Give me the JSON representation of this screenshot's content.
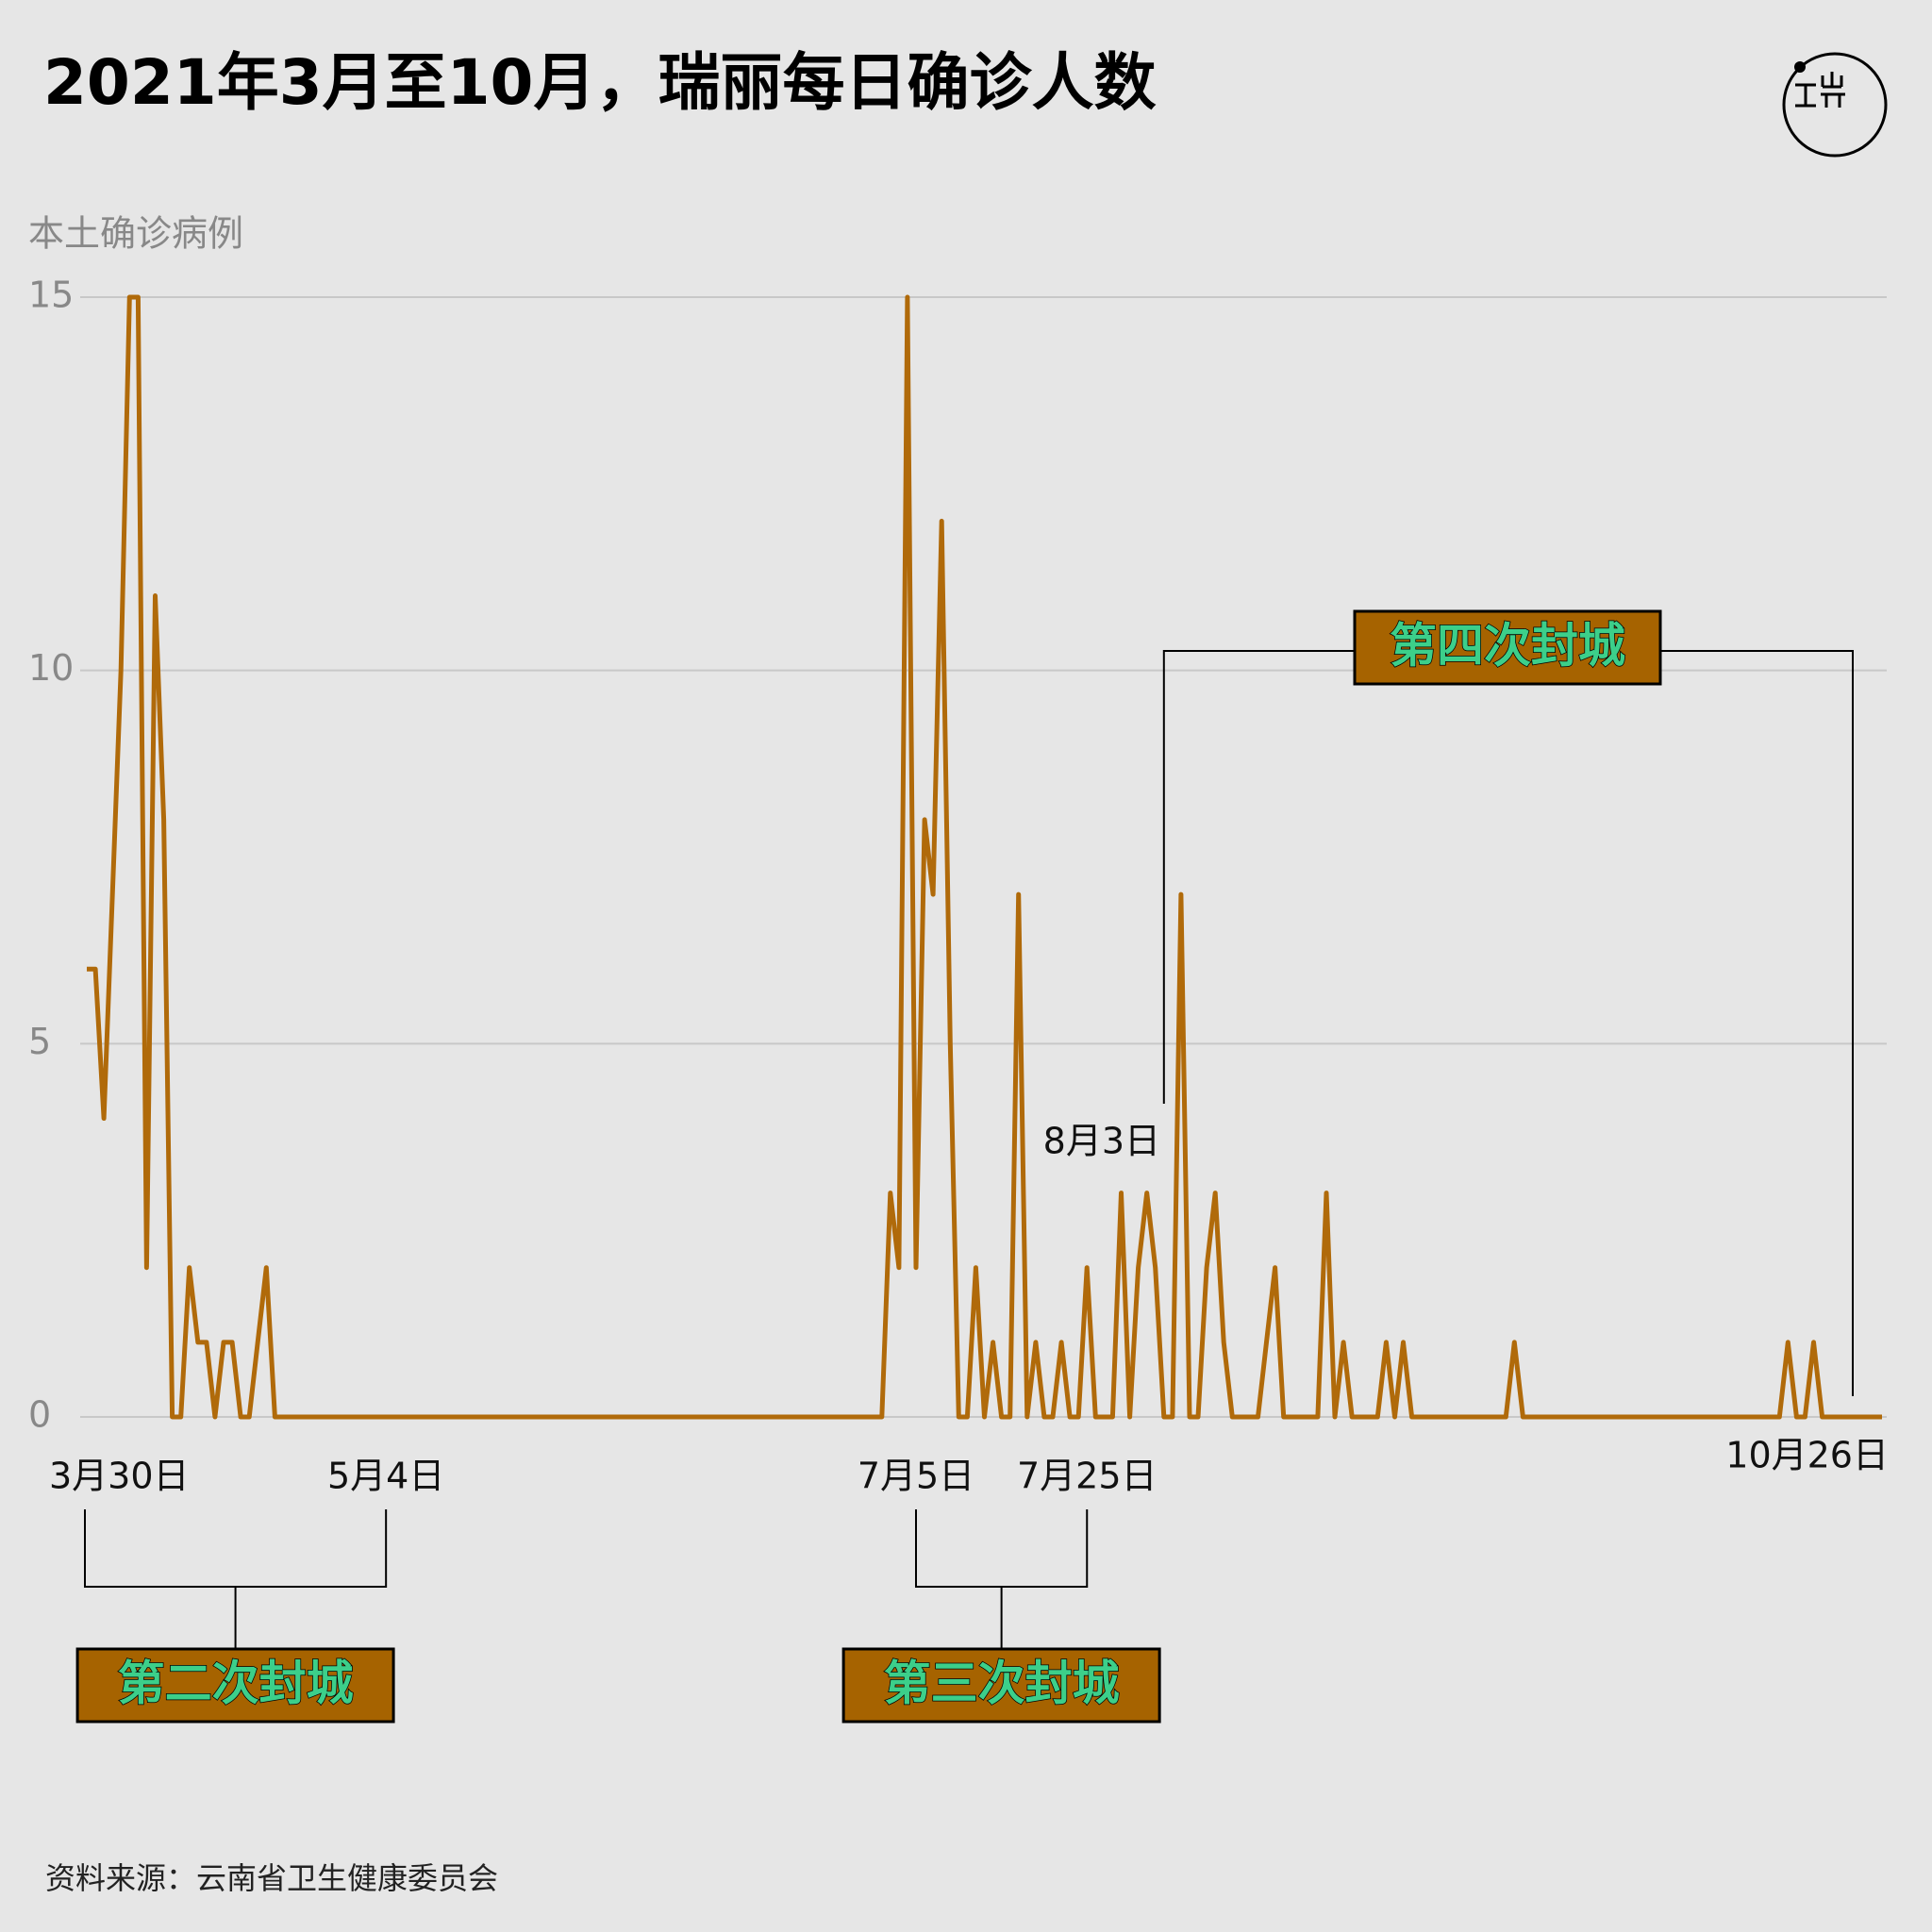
{
  "chart_data": {
    "type": "line",
    "title": "2021年3月至10月，瑞丽每日确诊人数",
    "y_label": "本土确诊病例",
    "source": "资料来源：云南省卫生健康委员会",
    "annotations": [
      "第二次封城",
      "第三次封城",
      "第四次封城"
    ],
    "color": "#b06a0a",
    "ylim": [
      0,
      15
    ],
    "yticks": [
      0,
      5,
      10,
      15
    ],
    "grid": true,
    "categories": [
      "3月30日",
      null,
      null,
      null,
      null,
      null,
      null,
      null,
      null,
      null,
      null,
      null,
      null,
      null,
      null,
      null,
      null,
      null,
      null,
      null,
      null,
      null,
      null,
      null,
      null,
      null,
      null,
      null,
      null,
      null,
      null,
      null,
      null,
      null,
      null,
      "5月4日",
      null,
      null,
      null,
      null,
      null,
      null,
      null,
      null,
      null,
      null,
      null,
      null,
      null,
      null,
      null,
      null,
      null,
      null,
      null,
      null,
      null,
      null,
      null,
      null,
      null,
      null,
      null,
      null,
      null,
      null,
      null,
      null,
      null,
      null,
      null,
      null,
      null,
      null,
      null,
      null,
      null,
      null,
      null,
      null,
      null,
      null,
      null,
      null,
      null,
      null,
      null,
      null,
      null,
      null,
      null,
      null,
      null,
      null,
      null,
      null,
      null,
      "7月5日",
      null,
      null,
      null,
      null,
      null,
      null,
      null,
      null,
      null,
      null,
      null,
      null,
      null,
      null,
      null,
      null,
      null,
      null,
      null,
      "7月25日",
      null,
      null,
      null,
      null,
      null,
      null,
      null,
      null,
      "8月3日",
      null,
      null,
      null,
      null,
      null,
      null,
      null,
      null,
      null,
      null,
      null,
      null,
      null,
      null,
      null,
      null,
      null,
      null,
      null,
      null,
      null,
      null,
      null,
      null,
      null,
      null,
      null,
      null,
      null,
      null,
      null,
      null,
      null,
      null,
      null,
      null,
      null,
      null,
      null,
      null,
      null,
      null,
      null,
      null,
      null,
      null,
      null,
      null,
      null,
      null,
      null,
      null,
      null,
      null,
      null,
      null,
      null,
      null,
      null,
      null,
      null,
      null,
      null,
      null,
      null,
      null,
      null,
      null,
      null,
      null,
      null,
      null,
      null,
      null,
      null,
      null,
      null,
      null,
      null,
      null,
      null,
      null,
      null,
      "10月26日"
    ],
    "values": [
      6,
      6,
      4,
      7,
      10,
      15,
      15,
      2,
      11,
      8,
      0,
      0,
      2,
      1,
      1,
      0,
      1,
      1,
      0,
      0,
      1,
      2,
      0,
      0,
      0,
      0,
      0,
      0,
      0,
      0,
      0,
      0,
      0,
      0,
      0,
      0,
      0,
      0,
      0,
      0,
      0,
      0,
      0,
      0,
      0,
      0,
      0,
      0,
      0,
      0,
      0,
      0,
      0,
      0,
      0,
      0,
      0,
      0,
      0,
      0,
      0,
      0,
      0,
      0,
      0,
      0,
      0,
      0,
      0,
      0,
      0,
      0,
      0,
      0,
      0,
      0,
      0,
      0,
      0,
      0,
      0,
      0,
      0,
      0,
      0,
      0,
      0,
      0,
      0,
      0,
      0,
      0,
      0,
      0,
      3,
      2,
      15,
      2,
      8,
      7,
      12,
      5,
      0,
      0,
      2,
      0,
      1,
      0,
      0,
      7,
      0,
      1,
      0,
      0,
      1,
      0,
      0,
      2,
      0,
      0,
      0,
      3,
      0,
      2,
      3,
      2,
      0,
      0,
      7,
      0,
      0,
      2,
      3,
      1,
      0,
      0,
      0,
      0,
      1,
      2,
      0,
      0,
      0,
      0,
      0,
      3,
      0,
      1,
      0,
      0,
      0,
      0,
      1,
      0,
      1,
      0,
      0,
      0,
      0,
      0,
      0,
      0,
      0,
      0,
      0,
      0,
      0,
      1,
      0,
      0,
      0,
      0,
      0,
      0,
      0,
      0,
      0,
      0,
      0,
      0,
      0,
      0,
      0,
      0,
      0,
      0,
      0,
      0,
      0,
      0,
      0,
      0,
      0,
      0,
      0,
      0,
      0,
      0,
      0,
      1,
      0,
      0,
      1,
      0,
      0,
      0,
      0,
      0,
      0,
      0,
      0
    ]
  }
}
